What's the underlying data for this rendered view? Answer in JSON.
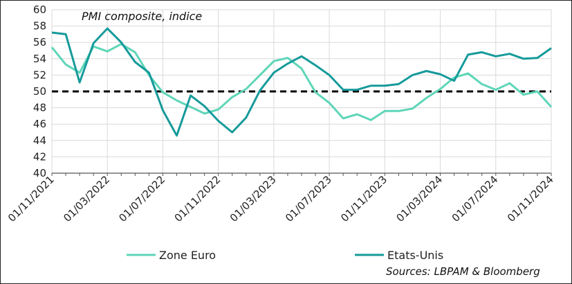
{
  "chart_data": {
    "type": "line",
    "title": "PMI composite, indice",
    "source": "Sources: LBPAM & Bloomberg",
    "ylim": [
      40,
      60
    ],
    "yticks": [
      "40",
      "42",
      "44",
      "46",
      "48",
      "50",
      "52",
      "54",
      "56",
      "58",
      "60"
    ],
    "x": [
      "01/11/2021",
      "01/12/2021",
      "01/01/2022",
      "01/02/2022",
      "01/03/2022",
      "01/04/2022",
      "01/05/2022",
      "01/06/2022",
      "01/07/2022",
      "01/08/2022",
      "01/09/2022",
      "01/10/2022",
      "01/11/2022",
      "01/12/2022",
      "01/01/2023",
      "01/02/2023",
      "01/03/2023",
      "01/04/2023",
      "01/05/2023",
      "01/06/2023",
      "01/07/2023",
      "01/08/2023",
      "01/09/2023",
      "01/10/2023",
      "01/11/2023",
      "01/12/2023",
      "01/01/2024",
      "01/02/2024",
      "01/03/2024",
      "01/04/2024",
      "01/05/2024",
      "01/06/2024",
      "01/07/2024",
      "01/08/2024",
      "01/09/2024",
      "01/10/2024",
      "01/11/2024"
    ],
    "xtick_labels": [
      "01/11/2021",
      "01/03/2022",
      "01/07/2022",
      "01/11/2022",
      "01/03/2023",
      "01/07/2023",
      "01/11/2023",
      "01/03/2024",
      "01/07/2024",
      "01/11/2024"
    ],
    "reference_line": 50,
    "grid": true,
    "legend_position": "bottom",
    "series": [
      {
        "name": "Zone Euro",
        "color": "#5ed6b8",
        "values": [
          55.4,
          53.3,
          52.3,
          55.5,
          54.9,
          55.8,
          54.8,
          52.0,
          49.9,
          48.9,
          48.1,
          47.3,
          47.8,
          49.3,
          50.3,
          52.0,
          53.7,
          54.1,
          52.8,
          49.9,
          48.6,
          46.7,
          47.2,
          46.5,
          47.6,
          47.6,
          47.9,
          49.2,
          50.3,
          51.7,
          52.2,
          50.9,
          50.2,
          51.0,
          49.6,
          50.0,
          48.1
        ]
      },
      {
        "name": "Etats-Unis",
        "color": "#169a9a",
        "values": [
          57.2,
          57.0,
          51.1,
          55.9,
          57.7,
          56.0,
          53.6,
          52.3,
          47.7,
          44.6,
          49.5,
          48.2,
          46.4,
          45.0,
          46.8,
          50.1,
          52.3,
          53.4,
          54.3,
          53.2,
          52.0,
          50.2,
          50.2,
          50.7,
          50.7,
          50.9,
          52.0,
          52.5,
          52.1,
          51.3,
          54.5,
          54.8,
          54.3,
          54.6,
          54.0,
          54.1,
          55.3
        ]
      }
    ]
  }
}
